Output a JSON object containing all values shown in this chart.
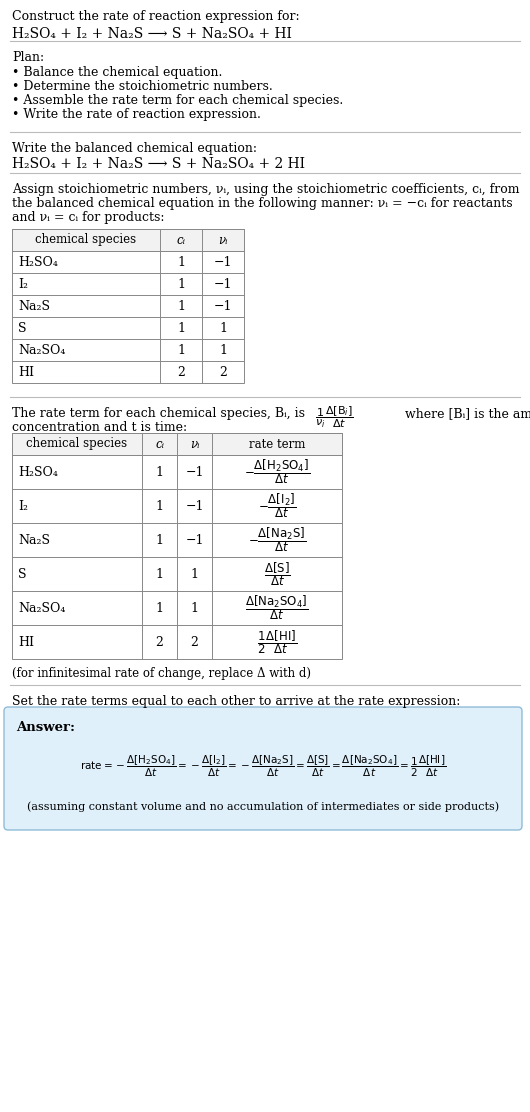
{
  "title_text": "Construct the rate of reaction expression for:",
  "reaction_unbalanced": "H₂SO₄ + I₂ + Na₂S ⟶ S + Na₂SO₄ + HI",
  "plan_header": "Plan:",
  "plan_items": [
    "• Balance the chemical equation.",
    "• Determine the stoichiometric numbers.",
    "• Assemble the rate term for each chemical species.",
    "• Write the rate of reaction expression."
  ],
  "balanced_header": "Write the balanced chemical equation:",
  "reaction_balanced": "H₂SO₄ + I₂ + Na₂S ⟶ S + Na₂SO₄ + 2 HI",
  "stoich_intro_lines": [
    "Assign stoichiometric numbers, νᵢ, using the stoichiometric coefficients, cᵢ, from",
    "the balanced chemical equation in the following manner: νᵢ = −cᵢ for reactants",
    "and νᵢ = cᵢ for products:"
  ],
  "table1_headers": [
    "chemical species",
    "cᵢ",
    "νᵢ"
  ],
  "table1_rows": [
    [
      "H₂SO₄",
      "1",
      "−1"
    ],
    [
      "I₂",
      "1",
      "−1"
    ],
    [
      "Na₂S",
      "1",
      "−1"
    ],
    [
      "S",
      "1",
      "1"
    ],
    [
      "Na₂SO₄",
      "1",
      "1"
    ],
    [
      "HI",
      "2",
      "2"
    ]
  ],
  "rate_intro_part1": "The rate term for each chemical species, Bᵢ, is",
  "rate_intro_part2": "where [Bᵢ] is the amount",
  "rate_intro_line2": "concentration and t is time:",
  "table2_headers": [
    "chemical species",
    "cᵢ",
    "νᵢ",
    "rate term"
  ],
  "table2_species": [
    "H₂SO₄",
    "I₂",
    "Na₂S",
    "S",
    "Na₂SO₄",
    "HI"
  ],
  "table2_ci": [
    "1",
    "1",
    "1",
    "1",
    "1",
    "2"
  ],
  "table2_nu": [
    "−1",
    "−1",
    "−1",
    "1",
    "1",
    "2"
  ],
  "infinitesimal_note": "(for infinitesimal rate of change, replace Δ with d)",
  "set_equal_text": "Set the rate terms equal to each other to arrive at the rate expression:",
  "answer_label": "Answer:",
  "answer_box_color": "#dff0fb",
  "answer_box_border": "#90bcd8",
  "assuming_note": "(assuming constant volume and no accumulation of intermediates or side products)",
  "bg_color": "#ffffff",
  "text_color": "#000000",
  "table_border_color": "#888888",
  "line_color": "#bbbbbb"
}
